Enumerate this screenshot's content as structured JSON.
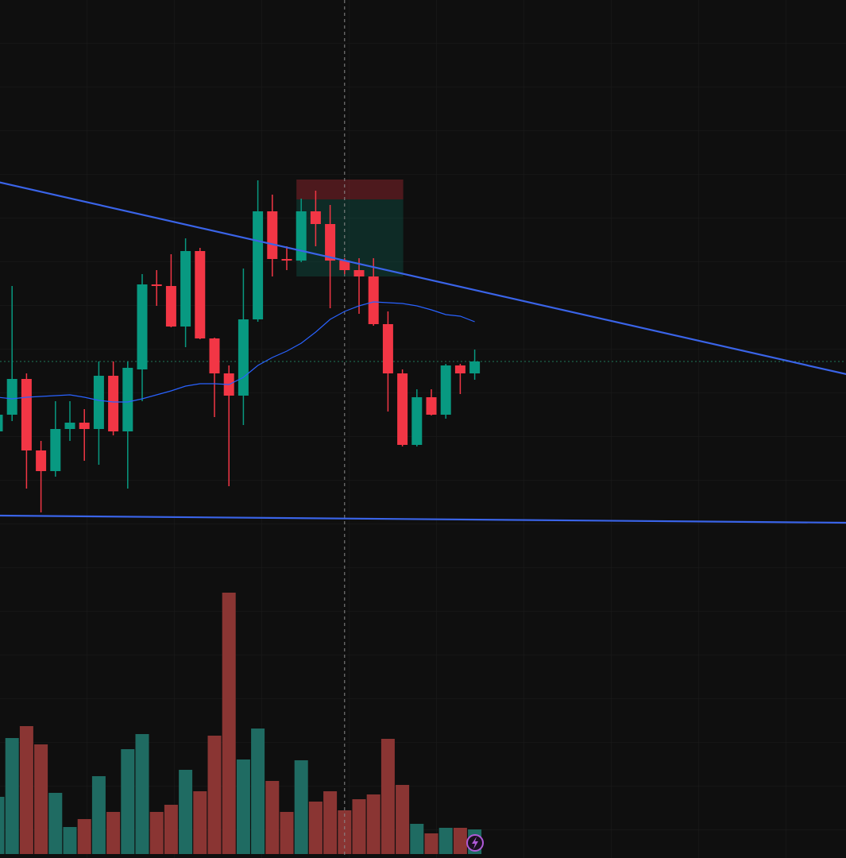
{
  "chart_data": {
    "type": "candlestick",
    "up_color": "#089981",
    "down_color": "#f23645",
    "volume_up_color": "#1f6b62",
    "volume_down_color": "#8a3533",
    "ylim": [
      0,
      740
    ],
    "volume_ylim": [
      0,
      340
    ],
    "open": [
      197,
      218,
      263,
      173,
      147,
      200,
      208,
      200,
      267,
      197,
      275,
      382,
      380,
      329,
      424,
      314,
      270,
      242,
      338,
      474,
      414,
      412,
      474,
      458,
      412,
      400,
      392,
      332,
      270,
      180,
      240,
      218,
      280,
      270
    ],
    "high": [
      240,
      380,
      270,
      185,
      235,
      235,
      225,
      285,
      285,
      285,
      395,
      400,
      420,
      440,
      428,
      315,
      280,
      402,
      513,
      495,
      430,
      490,
      500,
      482,
      415,
      415,
      415,
      348,
      275,
      250,
      250,
      282,
      282,
      300
    ],
    "low": [
      180,
      210,
      125,
      95,
      140,
      185,
      160,
      155,
      192,
      125,
      235,
      355,
      328,
      303,
      313,
      215,
      128,
      205,
      335,
      392,
      400,
      410,
      430,
      352,
      395,
      345,
      330,
      222,
      178,
      178,
      217,
      213,
      244,
      262
    ],
    "close": [
      218,
      263,
      173,
      147,
      200,
      208,
      200,
      267,
      197,
      277,
      382,
      380,
      329,
      424,
      314,
      270,
      242,
      338,
      474,
      414,
      412,
      474,
      458,
      412,
      400,
      392,
      332,
      270,
      180,
      240,
      218,
      280,
      270,
      285
    ],
    "volume": [
      72,
      146,
      161,
      138,
      77,
      34,
      44,
      98,
      53,
      132,
      151,
      53,
      62,
      106,
      79,
      149,
      329,
      119,
      158,
      92,
      53,
      118,
      66,
      79,
      55,
      69,
      75,
      145,
      87,
      38,
      26,
      33,
      33,
      31
    ],
    "ma": {
      "color": "#2962ff",
      "values": [
        240,
        238,
        240,
        241,
        242,
        243,
        240,
        236,
        234,
        234,
        238,
        243,
        248,
        254,
        257,
        257,
        256,
        265,
        280,
        290,
        298,
        308,
        322,
        338,
        348,
        355,
        360,
        359,
        358,
        355,
        350,
        344,
        342,
        335
      ]
    },
    "trendlines": [
      {
        "color": "#3a64e8",
        "x": [
          0,
          58.7
        ],
        "values": [
          511,
          269
        ]
      },
      {
        "color": "#3a64e8",
        "x": [
          0,
          58.7
        ],
        "values": [
          91,
          82
        ]
      }
    ],
    "position": {
      "x": [
        21,
        28
      ],
      "stop": 514,
      "entry": 489,
      "target": 392
    },
    "crosshair": {
      "x": 24,
      "value": 285
    }
  }
}
